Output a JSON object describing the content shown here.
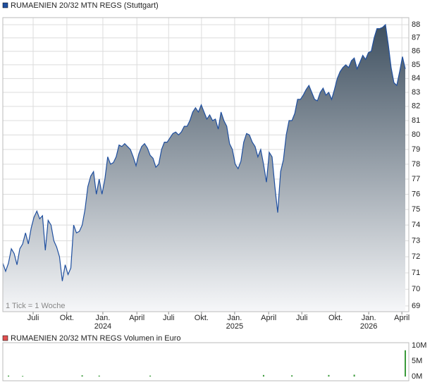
{
  "chart_data": [
    {
      "type": "area",
      "log_scale": true,
      "grid": true,
      "annotation": "1 Tick = 1 Woche",
      "series": [
        {
          "name": "RUMAENIEN 20/32 MTN REGS (Stuttgart)",
          "color": "#1f4f9f",
          "values": [
            71.6,
            71.1,
            71.6,
            72.5,
            72.2,
            71.5,
            72.5,
            72.8,
            73.5,
            72.8,
            73.8,
            74.5,
            74.9,
            74.4,
            74.6,
            72.4,
            74.3,
            74.0,
            73.0,
            72.6,
            72.0,
            70.5,
            71.5,
            70.9,
            71.3,
            74.0,
            73.5,
            73.6,
            74.0,
            75.0,
            76.5,
            77.2,
            77.5,
            76.0,
            77.0,
            76.0,
            77.0,
            78.5,
            78.0,
            78.1,
            78.5,
            79.3,
            79.2,
            79.4,
            79.2,
            79.0,
            78.5,
            77.9,
            78.7,
            79.2,
            79.4,
            79.1,
            78.6,
            78.4,
            77.8,
            78.0,
            79.0,
            79.5,
            79.5,
            79.8,
            80.1,
            80.2,
            80.0,
            80.2,
            80.6,
            80.6,
            81.0,
            81.6,
            81.9,
            81.6,
            82.1,
            81.6,
            81.1,
            81.4,
            81.0,
            81.1,
            80.4,
            81.6,
            81.0,
            80.6,
            79.4,
            79.0,
            78.0,
            77.7,
            78.2,
            79.5,
            80.1,
            80.0,
            79.5,
            79.2,
            78.5,
            79.0,
            78.0,
            76.8,
            78.8,
            78.5,
            76.5,
            74.8,
            77.5,
            78.3,
            80.0,
            81.0,
            81.0,
            81.5,
            82.5,
            82.5,
            82.8,
            83.2,
            83.5,
            83.0,
            82.5,
            82.4,
            83.0,
            83.3,
            82.8,
            83.0,
            82.5,
            83.2,
            84.0,
            84.5,
            84.8,
            85.0,
            84.8,
            85.3,
            85.5,
            84.7,
            85.2,
            85.7,
            85.4,
            85.9,
            86.0,
            87.0,
            87.7,
            87.7,
            87.8,
            88.0,
            86.5,
            84.8,
            83.7,
            83.5,
            84.5,
            85.6,
            84.7
          ]
        }
      ],
      "xlim": [
        0,
        142
      ],
      "xticks": [
        {
          "value": 10.7,
          "label": "Juli"
        },
        {
          "value": 22.6,
          "label": "Okt."
        },
        {
          "value": 35.3,
          "label": "Jan.",
          "year": "2024"
        },
        {
          "value": 47.3,
          "label": "April"
        },
        {
          "value": 58.5,
          "label": "Juli"
        },
        {
          "value": 70.1,
          "label": "Okt."
        },
        {
          "value": 81.8,
          "label": "Jan.",
          "year": "2025"
        },
        {
          "value": 93.8,
          "label": "April"
        },
        {
          "value": 105.5,
          "label": "Juli"
        },
        {
          "value": 117.4,
          "label": "Okt."
        },
        {
          "value": 129.1,
          "label": "Jan.",
          "year": "2026"
        },
        {
          "value": 140.8,
          "label": "April"
        }
      ],
      "ylim": [
        68.66,
        88.54
      ],
      "yticks": [
        69,
        70,
        71,
        72,
        73,
        74,
        75,
        76,
        77,
        78,
        79,
        80,
        81,
        82,
        83,
        84,
        85,
        86,
        87,
        88
      ]
    },
    {
      "type": "bar",
      "series": [
        {
          "name": "RUMAENIEN 20/32 MTN REGS Volumen in Euro",
          "color": "#3a9a3a",
          "values": [
            0,
            0,
            300000,
            0,
            0,
            0,
            0,
            200000,
            0,
            0,
            0,
            0,
            0,
            0,
            0,
            0,
            0,
            0,
            0,
            0,
            0,
            0,
            0,
            0,
            0,
            0,
            0,
            0,
            400000,
            0,
            0,
            0,
            0,
            0,
            300000,
            0,
            0,
            0,
            0,
            0,
            0,
            0,
            0,
            0,
            0,
            0,
            0,
            0,
            0,
            0,
            0,
            0,
            300000,
            0,
            0,
            0,
            0,
            0,
            0,
            0,
            0,
            0,
            0,
            0,
            0,
            0,
            0,
            0,
            0,
            0,
            0,
            0,
            0,
            0,
            0,
            0,
            0,
            0,
            0,
            0,
            0,
            0,
            0,
            0,
            0,
            0,
            0,
            0,
            0,
            0,
            0,
            0,
            500000,
            0,
            0,
            0,
            0,
            0,
            0,
            0,
            0,
            0,
            400000,
            0,
            0,
            0,
            0,
            0,
            0,
            0,
            0,
            0,
            0,
            0,
            0,
            500000,
            0,
            0,
            0,
            0,
            0,
            0,
            0,
            0,
            600000,
            0,
            0,
            0,
            0,
            0,
            0,
            0,
            0,
            0,
            0,
            0,
            0,
            0,
            0,
            0,
            0,
            0,
            8500000
          ]
        }
      ],
      "xlim": [
        0,
        142
      ],
      "ylim": [
        0,
        10500000
      ],
      "yticks": [
        {
          "value": 0,
          "label": "0M"
        },
        {
          "value": 5000000,
          "label": "5M"
        },
        {
          "value": 10000000,
          "label": "10M"
        }
      ]
    }
  ]
}
